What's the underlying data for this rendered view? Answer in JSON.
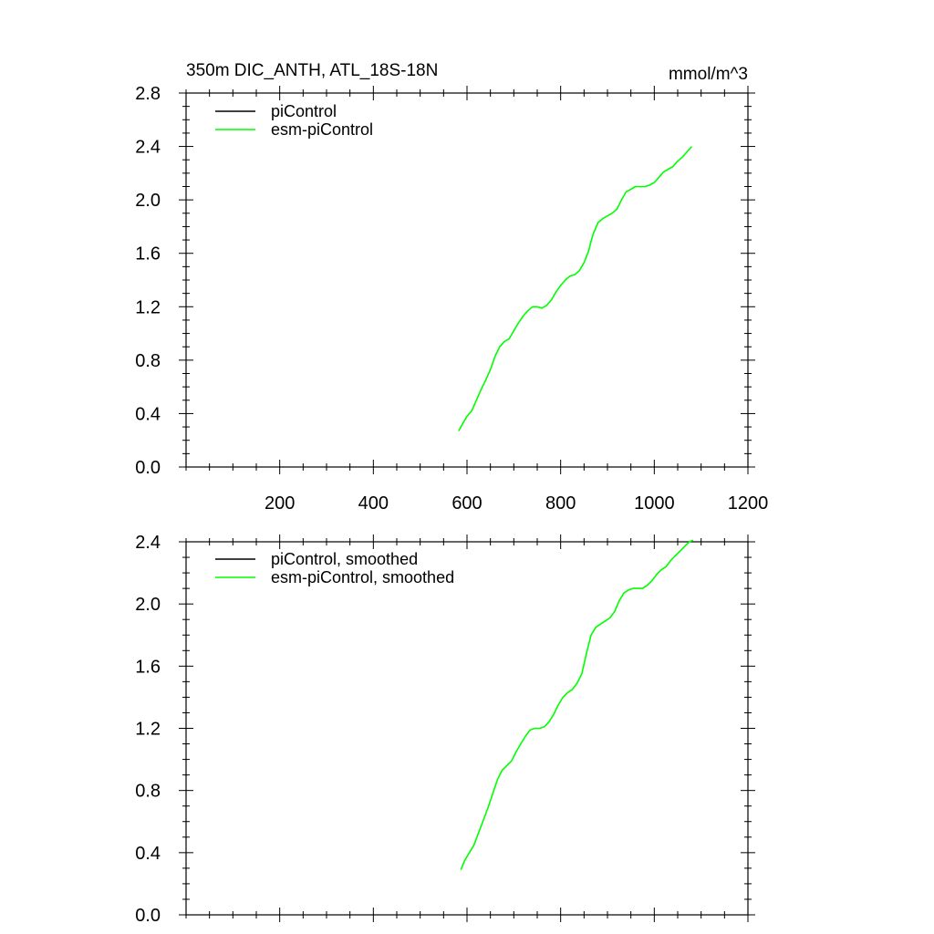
{
  "figure": {
    "title_left": "350m DIC_ANTH, ATL_18S-18N",
    "title_right": "mmol/m^3"
  },
  "colors": {
    "piControl": "#000000",
    "esm_piControl": "#00ff00"
  },
  "chart_data": [
    {
      "type": "line",
      "title": "350m DIC_ANTH, ATL_18S-18N",
      "units": "mmol/m^3",
      "xlim": [
        0,
        1200
      ],
      "ylim": [
        0.0,
        2.8
      ],
      "xticks": [
        200,
        400,
        600,
        800,
        1000,
        1200
      ],
      "xtick_labels": [
        "200",
        "400",
        "600",
        "800",
        "1000",
        "1200"
      ],
      "yticks": [
        0.0,
        0.4,
        0.8,
        1.2,
        1.6,
        2.0,
        2.4,
        2.8
      ],
      "ytick_labels": [
        "0.0",
        "0.4",
        "0.8",
        "1.2",
        "1.6",
        "2.0",
        "2.4",
        "2.8"
      ],
      "legend": {
        "placement": "top-left",
        "entries": [
          "piControl",
          "esm-piControl"
        ]
      },
      "series": [
        {
          "name": "piControl",
          "color": "#000000",
          "x": [],
          "y": []
        },
        {
          "name": "esm-piControl",
          "color": "#00ff00",
          "x": [
            582,
            590,
            600,
            610,
            620,
            630,
            640,
            650,
            660,
            670,
            680,
            690,
            700,
            710,
            720,
            730,
            740,
            750,
            760,
            770,
            780,
            790,
            800,
            810,
            820,
            830,
            840,
            850,
            860,
            865,
            870,
            880,
            890,
            900,
            910,
            920,
            930,
            940,
            950,
            960,
            970,
            980,
            990,
            1000,
            1010,
            1020,
            1030,
            1040,
            1050,
            1060,
            1070,
            1080
          ],
          "y": [
            0.27,
            0.32,
            0.38,
            0.42,
            0.5,
            0.58,
            0.65,
            0.73,
            0.83,
            0.9,
            0.94,
            0.96,
            1.02,
            1.08,
            1.13,
            1.17,
            1.2,
            1.2,
            1.19,
            1.21,
            1.25,
            1.31,
            1.36,
            1.4,
            1.43,
            1.44,
            1.47,
            1.53,
            1.62,
            1.69,
            1.75,
            1.83,
            1.86,
            1.88,
            1.9,
            1.93,
            2.0,
            2.06,
            2.08,
            2.1,
            2.1,
            2.1,
            2.11,
            2.13,
            2.17,
            2.21,
            2.23,
            2.25,
            2.29,
            2.32,
            2.36,
            2.4
          ]
        }
      ]
    },
    {
      "type": "line",
      "xlim": [
        0,
        1200
      ],
      "ylim": [
        0.0,
        2.4
      ],
      "xticks": [
        200,
        400,
        600,
        800,
        1000,
        1200
      ],
      "yticks": [
        0.0,
        0.4,
        0.8,
        1.2,
        1.6,
        2.0,
        2.4
      ],
      "ytick_labels": [
        "0.0",
        "0.4",
        "0.8",
        "1.2",
        "1.6",
        "2.0",
        "2.4"
      ],
      "legend": {
        "placement": "top-left",
        "entries": [
          "piControl, smoothed",
          "esm-piControl, smoothed"
        ]
      },
      "series": [
        {
          "name": "piControl, smoothed",
          "color": "#000000",
          "x": [],
          "y": []
        },
        {
          "name": "esm-piControl, smoothed",
          "color": "#00ff00",
          "x": [
            587,
            595,
            605,
            615,
            625,
            635,
            645,
            655,
            665,
            675,
            685,
            695,
            705,
            715,
            725,
            735,
            745,
            755,
            765,
            775,
            785,
            795,
            805,
            815,
            825,
            835,
            845,
            855,
            865,
            875,
            885,
            895,
            905,
            915,
            925,
            935,
            945,
            955,
            965,
            975,
            985,
            995,
            1005,
            1015,
            1025,
            1035,
            1045,
            1055,
            1065,
            1075,
            1083
          ],
          "y": [
            0.29,
            0.35,
            0.4,
            0.45,
            0.53,
            0.61,
            0.69,
            0.78,
            0.87,
            0.93,
            0.96,
            0.99,
            1.05,
            1.1,
            1.15,
            1.19,
            1.2,
            1.2,
            1.21,
            1.24,
            1.29,
            1.35,
            1.4,
            1.43,
            1.45,
            1.49,
            1.55,
            1.68,
            1.8,
            1.85,
            1.87,
            1.89,
            1.91,
            1.95,
            2.02,
            2.07,
            2.09,
            2.1,
            2.1,
            2.1,
            2.12,
            2.15,
            2.19,
            2.22,
            2.24,
            2.28,
            2.31,
            2.34,
            2.37,
            2.4,
            2.41
          ]
        }
      ]
    }
  ]
}
